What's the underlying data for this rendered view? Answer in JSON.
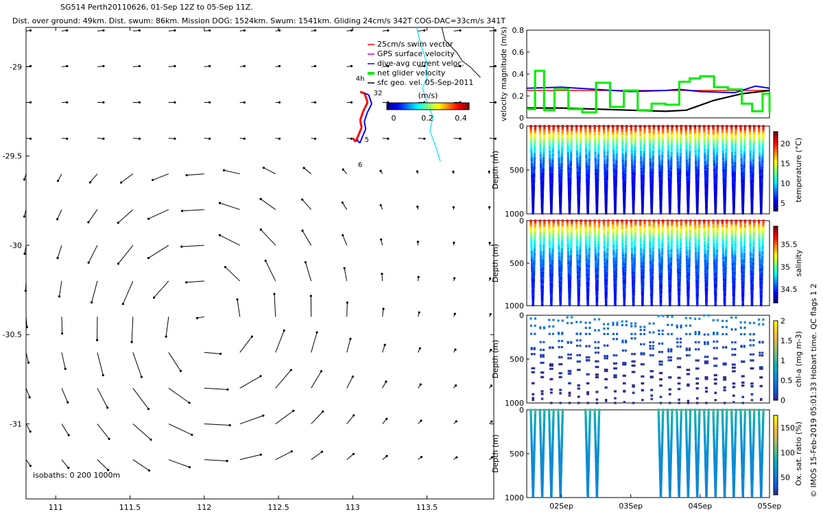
{
  "header": {
    "line1": "SG514 Perth20110626, 01-Sep 12Z to 05-Sep 11Z.",
    "line2": "Dist. over ground: 49km. Dist. swum: 86km. Mission DOG: 1524km. Swum: 1541km. Gliding 24cm/s 342T COG-DAC=33cm/s 341T"
  },
  "colors": {
    "swim": "#ff0000",
    "gps": "#cc00cc",
    "dac": "#0000ff",
    "net": "#00ee00",
    "geo": "#000000",
    "coast": "#00e0ff"
  },
  "map": {
    "xlim": [
      110.8,
      113.95
    ],
    "ylim": [
      -31.42,
      -28.78
    ],
    "xticks": [
      "111",
      "111.5",
      "112",
      "112.5",
      "113",
      "113.5"
    ],
    "yticks": [
      "-29",
      "-29.5",
      "-30",
      "-30.5",
      "-31"
    ],
    "isobath_label": "isobaths: 0   200   1000m",
    "legend": [
      {
        "label": "25cm/s swim vector",
        "color": "#ff0000"
      },
      {
        "label": "GPS surface velocity",
        "color": "#cc00cc"
      },
      {
        "label": "dive-avg current veloc.",
        "color": "#0000ff"
      },
      {
        "label": "net glider velocity",
        "color": "#00ee00"
      },
      {
        "label": "sfc geo. vel. 05-Sep-2011",
        "color": "#000000"
      }
    ],
    "colorbar": {
      "title": "(m/s)",
      "ticks": [
        "0",
        "0.2",
        "0.4"
      ]
    },
    "track_labels": [
      "4h",
      "32",
      "5",
      "6"
    ]
  },
  "chart_data": [
    {
      "type": "line",
      "title": "",
      "xlabel": "",
      "ylabel": "velocity magnitude (m/s)",
      "ylim": [
        0,
        0.8
      ],
      "yticks": [
        "0",
        "0.2",
        "0.4",
        "0.6",
        "0.8"
      ],
      "xlim_days": [
        1.5,
        5.0
      ],
      "series": [
        {
          "name": "25cm/s swim vector",
          "x": [
            1.5,
            5.0
          ],
          "values": [
            0.25,
            0.25
          ]
        },
        {
          "name": "dive-avg current veloc.",
          "x": [
            1.5,
            2.0,
            2.5,
            3.0,
            3.5,
            3.7,
            4.0,
            4.5,
            4.8,
            5.0
          ],
          "values": [
            0.27,
            0.28,
            0.26,
            0.24,
            0.25,
            0.26,
            0.24,
            0.23,
            0.29,
            0.27
          ]
        },
        {
          "name": "sfc geo. vel. 05-Sep-2011",
          "x": [
            1.5,
            2.0,
            2.5,
            3.0,
            3.5,
            3.8,
            4.2,
            4.6,
            5.0
          ],
          "values": [
            0.09,
            0.09,
            0.08,
            0.07,
            0.06,
            0.07,
            0.16,
            0.22,
            0.25
          ]
        },
        {
          "name": "net glider velocity",
          "x": [
            1.5,
            1.62,
            1.75,
            1.9,
            2.1,
            2.3,
            2.5,
            2.7,
            2.9,
            3.1,
            3.3,
            3.5,
            3.62,
            3.7,
            3.85,
            4.0,
            4.2,
            4.4,
            4.6,
            4.75,
            4.9,
            5.0
          ],
          "values": [
            0.08,
            0.43,
            0.07,
            0.26,
            0.08,
            0.05,
            0.32,
            0.1,
            0.25,
            0.07,
            0.13,
            0.12,
            0.12,
            0.33,
            0.36,
            0.38,
            0.28,
            0.26,
            0.13,
            0.06,
            0.22,
            0.05
          ]
        }
      ]
    },
    {
      "type": "scatter",
      "xlabel": "",
      "ylabel": "Depth (m)",
      "colorbar_label": "temperature (°C)",
      "ylim": [
        1000,
        0
      ],
      "yticks": [
        "0",
        "500",
        "1000"
      ],
      "clim": [
        3,
        23
      ],
      "cticks": [
        "5",
        "10",
        "15",
        "20"
      ],
      "profile": {
        "surface": 22,
        "deep": 4
      },
      "dives_start_day": 1.5,
      "dive_period_days": 0.135
    },
    {
      "type": "scatter",
      "xlabel": "",
      "ylabel": "Depth (m)",
      "colorbar_label": "salinity",
      "ylim": [
        1000,
        0
      ],
      "yticks": [
        "0",
        "500",
        "1000"
      ],
      "clim": [
        34.2,
        35.9
      ],
      "cticks": [
        "34.5",
        "35",
        "35.5"
      ],
      "profile": {
        "surface": 35.7,
        "deep": 34.4
      }
    },
    {
      "type": "scatter",
      "xlabel": "",
      "ylabel": "Depth (m)",
      "colorbar_label": "chl-a (mg m-3)",
      "ylim": [
        1000,
        0
      ],
      "yticks": [
        "0",
        "500",
        "1000"
      ],
      "clim": [
        0,
        2
      ],
      "cticks": [
        "0",
        "0.5",
        "1",
        "1.5",
        "2"
      ],
      "profile": {
        "surface": 0.6,
        "deep": 0
      }
    },
    {
      "type": "scatter",
      "xlabel": "",
      "ylabel": "Depth (m)",
      "colorbar_label": "Ox. sat. ratio (%)",
      "ylim": [
        1000,
        0
      ],
      "yticks": [
        "0",
        "500",
        "1000"
      ],
      "clim": [
        15,
        175
      ],
      "cticks": [
        "50",
        "100",
        "150"
      ],
      "profile": {
        "surface": 95,
        "deep": 55
      },
      "xticks": [
        "02Sep",
        "03Sep",
        "04Sep",
        "05Sep"
      ],
      "xtick_days": [
        2,
        3,
        4,
        5
      ]
    }
  ],
  "side_note": "© IMOS 15-Feb-2019 05:01:33 Hobart time. QC flags 1  2"
}
